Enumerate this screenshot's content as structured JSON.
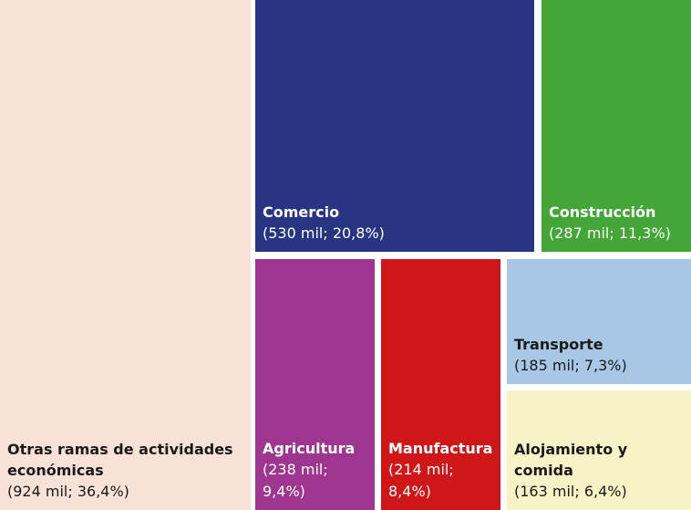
{
  "chart_data": {
    "type": "treemap",
    "title": "",
    "unit": "mil",
    "total_percent": 100,
    "items": [
      {
        "id": "otras",
        "label": "Otras ramas de actividades económicas",
        "value": 924,
        "percent": 36.4,
        "value_text": "(924 mil; 36,4%)",
        "color": "#F8E2D8"
      },
      {
        "id": "comercio",
        "label": "Comercio",
        "value": 530,
        "percent": 20.8,
        "value_text": "(530 mil; 20,8%)",
        "color": "#283583"
      },
      {
        "id": "construccion",
        "label": "Construcción",
        "value": 287,
        "percent": 11.3,
        "value_text": "(287 mil; 11,3%)",
        "color": "#43A637"
      },
      {
        "id": "agricultura",
        "label": "Agricultura",
        "value": 238,
        "percent": 9.4,
        "value_text": "(238 mil; 9,4%)",
        "color": "#9E358E"
      },
      {
        "id": "manufactura",
        "label": "Manufactura",
        "value": 214,
        "percent": 8.4,
        "value_text": "(214 mil; 8,4%)",
        "color": "#CF1719"
      },
      {
        "id": "transporte",
        "label": "Transporte",
        "value": 185,
        "percent": 7.3,
        "value_text": "(185 mil; 7,3%)",
        "color": "#A7C7E5"
      },
      {
        "id": "alojamiento",
        "label": "Alojamiento y comida",
        "value": 163,
        "percent": 6.4,
        "value_text": "(163 mil; 6,4%)",
        "color": "#F7F3C6"
      }
    ]
  }
}
